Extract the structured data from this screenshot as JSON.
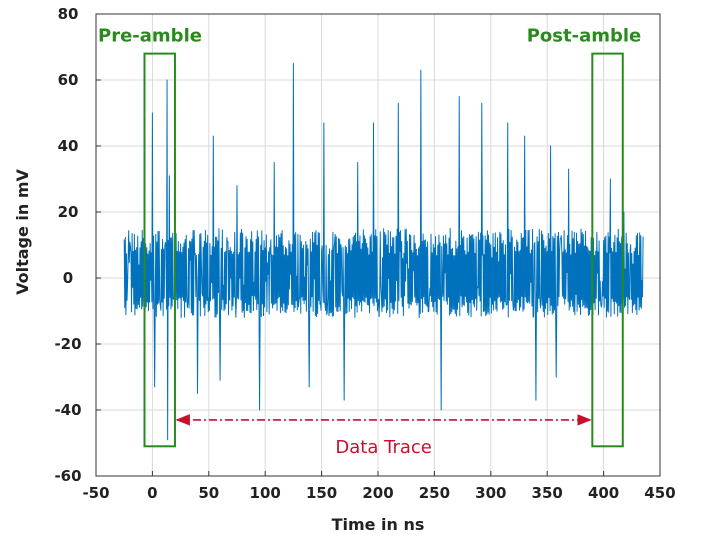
{
  "chart_data": {
    "type": "line",
    "xlabel": "Time in ns",
    "ylabel": "Voltage in mV",
    "xlim": [
      -50,
      450
    ],
    "ylim": [
      -60,
      80
    ],
    "xticks": [
      -50,
      0,
      50,
      100,
      150,
      200,
      250,
      300,
      350,
      400,
      450
    ],
    "yticks": [
      -60,
      -40,
      -20,
      0,
      20,
      40,
      60,
      80
    ],
    "grid": true,
    "series": [
      {
        "color": "#0072bd",
        "x_start": -25,
        "x_end": 435,
        "sample_interval": 0.5,
        "baseline_noise_range": [
          -12,
          15
        ],
        "spikes": [
          {
            "x": 0,
            "y": 50
          },
          {
            "x": 2,
            "y": -33
          },
          {
            "x": 13,
            "y": 60
          },
          {
            "x": 13.5,
            "y": -49
          },
          {
            "x": 15,
            "y": 31
          },
          {
            "x": 40,
            "y": -35
          },
          {
            "x": 54,
            "y": 43
          },
          {
            "x": 60,
            "y": -31
          },
          {
            "x": 75,
            "y": 28
          },
          {
            "x": 95,
            "y": -40
          },
          {
            "x": 108,
            "y": 35
          },
          {
            "x": 125,
            "y": 65
          },
          {
            "x": 139,
            "y": -33
          },
          {
            "x": 152,
            "y": 47
          },
          {
            "x": 170,
            "y": -37
          },
          {
            "x": 182,
            "y": 35
          },
          {
            "x": 196,
            "y": 47
          },
          {
            "x": 218,
            "y": 53
          },
          {
            "x": 238,
            "y": 63
          },
          {
            "x": 256,
            "y": -40
          },
          {
            "x": 272,
            "y": 55
          },
          {
            "x": 292,
            "y": 53
          },
          {
            "x": 315,
            "y": 47
          },
          {
            "x": 330,
            "y": 43
          },
          {
            "x": 340,
            "y": -37
          },
          {
            "x": 353,
            "y": 40
          },
          {
            "x": 358,
            "y": -30
          },
          {
            "x": 369,
            "y": 33
          },
          {
            "x": 406,
            "y": 30
          },
          {
            "x": 418,
            "y": 20
          }
        ]
      }
    ],
    "annotations": {
      "preamble": {
        "label": "Pre-amble",
        "x_range": [
          -7,
          20
        ],
        "y_range": [
          -51,
          68
        ],
        "color": "#2a8a1e"
      },
      "postamble": {
        "label": "Post-amble",
        "x_range": [
          390,
          417
        ],
        "y_range": [
          -51,
          68
        ],
        "color": "#2a8a1e"
      },
      "data_trace": {
        "label": "Data Trace",
        "x_range": [
          20,
          390
        ],
        "y": -43,
        "color": "#c8102e"
      }
    }
  }
}
